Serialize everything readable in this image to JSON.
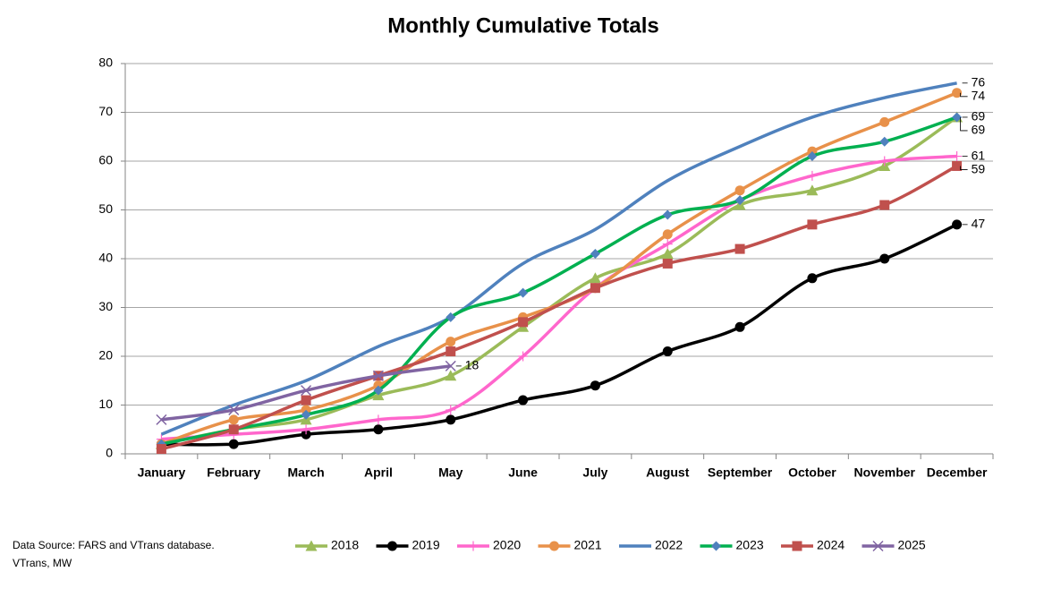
{
  "chart_data": {
    "type": "line",
    "title": "Monthly Cumulative Totals",
    "categories": [
      "January",
      "February",
      "March",
      "April",
      "May",
      "June",
      "July",
      "August",
      "September",
      "October",
      "November",
      "December"
    ],
    "ylim": [
      0,
      80
    ],
    "yticks": [
      0,
      10,
      20,
      30,
      40,
      50,
      60,
      70,
      80
    ],
    "grid": true,
    "legend": "bottom",
    "smooth": true,
    "series": [
      {
        "name": "2018",
        "color": "#9bbb59",
        "marker": "triangle",
        "data_labels": "last",
        "values": [
          2,
          5,
          7,
          12,
          16,
          26,
          36,
          41,
          51,
          54,
          59,
          69
        ]
      },
      {
        "name": "2019",
        "color": "#000000",
        "marker": "circle",
        "data_labels": "last",
        "values": [
          2,
          2,
          4,
          5,
          7,
          11,
          14,
          21,
          26,
          36,
          40,
          47
        ]
      },
      {
        "name": "2020",
        "color": "#ff66cc",
        "marker": "plus",
        "data_labels": "last",
        "values": [
          3,
          4,
          5,
          7,
          9,
          20,
          34,
          43,
          52,
          57,
          60,
          61
        ]
      },
      {
        "name": "2021",
        "color": "#e8914a",
        "marker": "circle",
        "data_labels": "last",
        "values": [
          2,
          7,
          9,
          14,
          23,
          28,
          34,
          45,
          54,
          62,
          68,
          74
        ]
      },
      {
        "name": "2022",
        "color": "#4f81bd",
        "marker": "none",
        "data_labels": "last",
        "values": [
          4,
          10,
          15,
          22,
          28,
          39,
          46,
          56,
          63,
          69,
          73,
          76
        ]
      },
      {
        "name": "2023",
        "color": "#00b050",
        "marker": "diamond",
        "marker_color": "#4f81bd",
        "data_labels": "last",
        "values": [
          2,
          5,
          8,
          13,
          28,
          33,
          41,
          49,
          52,
          61,
          64,
          69
        ]
      },
      {
        "name": "2024",
        "color": "#c0504d",
        "marker": "square",
        "data_labels": "last",
        "values": [
          1,
          5,
          11,
          16,
          21,
          27,
          34,
          39,
          42,
          47,
          51,
          59
        ]
      },
      {
        "name": "2025",
        "color": "#8064a2",
        "marker": "x",
        "data_labels": "last",
        "values": [
          7,
          9,
          13,
          16,
          18,
          null,
          null,
          null,
          null,
          null,
          null,
          null
        ]
      }
    ],
    "footnote": [
      "Data Source:  FARS and VTrans database.",
      "VTrans, MW"
    ]
  }
}
